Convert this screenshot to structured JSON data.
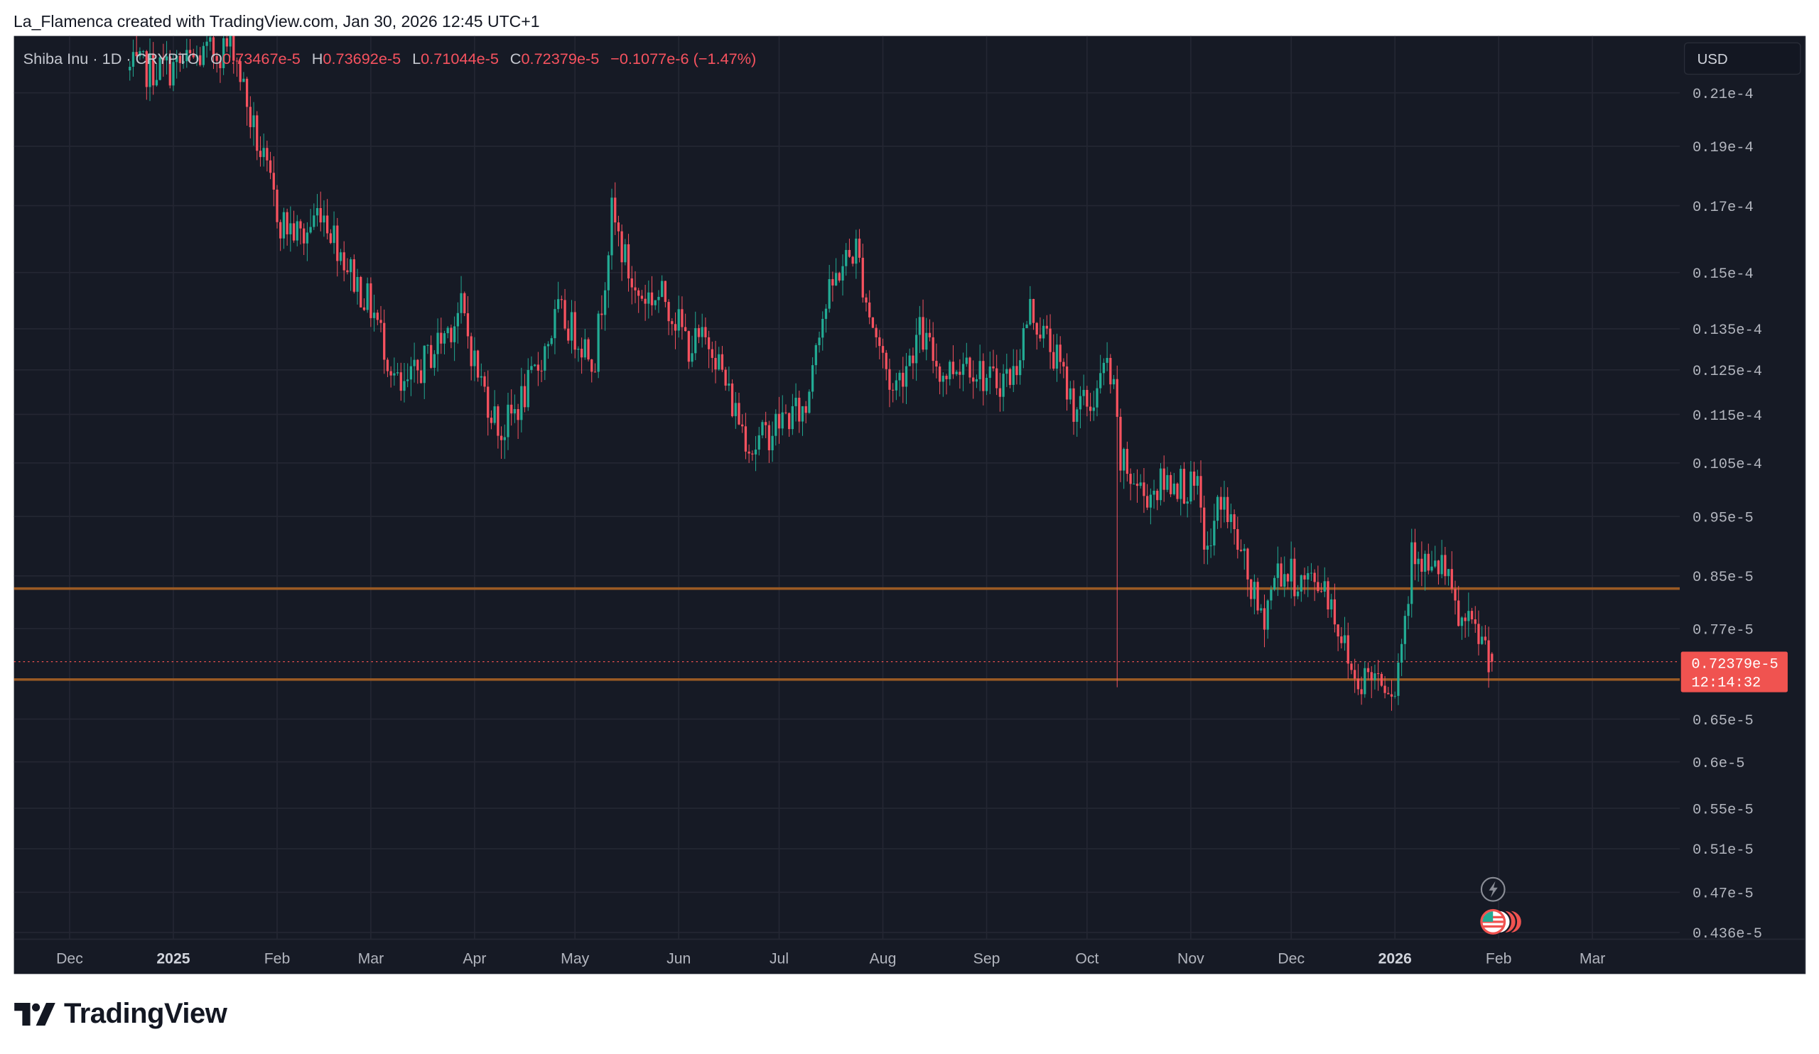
{
  "attribution": "La_Flamenca created with TradingView.com, Jan 30, 2026 12:45 UTC+1",
  "legend": {
    "symbol": "Shiba Inu · 1D · CRYPTO",
    "open_label": "O",
    "open": "0.73467e-5",
    "high_label": "H",
    "high": "0.73692e-5",
    "low_label": "L",
    "low": "0.71044e-5",
    "close_label": "C",
    "close": "0.72379e-5",
    "change": "−0.1077e-6 (−1.47%)"
  },
  "currency_button": "USD",
  "last_price": {
    "value": "0.72379e-5",
    "countdown": "12:14:32"
  },
  "logo_text": "TradingView",
  "colors": {
    "up": "#22ab94",
    "down": "#f7525f",
    "level": "#9a5a24",
    "background": "#161a25",
    "grid": "#242733",
    "axis_text": "#b2b5be"
  },
  "chart_data": {
    "type": "candlestick",
    "title": "Shiba Inu · 1D · CRYPTO",
    "unit": "e-5 USD",
    "yscale": "log",
    "ylim": [
      0.42,
      2.25
    ],
    "grid": true,
    "y_ticks": [
      {
        "value": 2.1,
        "label": "0.21e-4"
      },
      {
        "value": 1.9,
        "label": "0.19e-4"
      },
      {
        "value": 1.7,
        "label": "0.17e-4"
      },
      {
        "value": 1.5,
        "label": "0.15e-4"
      },
      {
        "value": 1.35,
        "label": "0.135e-4"
      },
      {
        "value": 1.25,
        "label": "0.125e-4"
      },
      {
        "value": 1.15,
        "label": "0.115e-4"
      },
      {
        "value": 1.05,
        "label": "0.105e-4"
      },
      {
        "value": 0.95,
        "label": "0.95e-5"
      },
      {
        "value": 0.85,
        "label": "0.85e-5"
      },
      {
        "value": 0.77,
        "label": "0.77e-5"
      },
      {
        "value": 0.65,
        "label": "0.65e-5"
      },
      {
        "value": 0.6,
        "label": "0.6e-5"
      },
      {
        "value": 0.55,
        "label": "0.55e-5"
      },
      {
        "value": 0.51,
        "label": "0.51e-5"
      },
      {
        "value": 0.47,
        "label": "0.47e-5"
      },
      {
        "value": 0.436,
        "label": "0.436e-5"
      }
    ],
    "x_ticks": [
      {
        "date": "2024-12-01",
        "label": "Dec",
        "bold": false
      },
      {
        "date": "2025-01-01",
        "label": "2025",
        "bold": true
      },
      {
        "date": "2025-02-01",
        "label": "Feb",
        "bold": false
      },
      {
        "date": "2025-03-01",
        "label": "Mar",
        "bold": false
      },
      {
        "date": "2025-04-01",
        "label": "Apr",
        "bold": false
      },
      {
        "date": "2025-05-01",
        "label": "May",
        "bold": false
      },
      {
        "date": "2025-06-01",
        "label": "Jun",
        "bold": false
      },
      {
        "date": "2025-07-01",
        "label": "Jul",
        "bold": false
      },
      {
        "date": "2025-08-01",
        "label": "Aug",
        "bold": false
      },
      {
        "date": "2025-09-01",
        "label": "Sep",
        "bold": false
      },
      {
        "date": "2025-10-01",
        "label": "Oct",
        "bold": false
      },
      {
        "date": "2025-11-01",
        "label": "Nov",
        "bold": false
      },
      {
        "date": "2025-12-01",
        "label": "Dec",
        "bold": false
      },
      {
        "date": "2026-01-01",
        "label": "2026",
        "bold": true
      },
      {
        "date": "2026-02-01",
        "label": "Feb",
        "bold": false
      },
      {
        "date": "2026-03-01",
        "label": "Mar",
        "bold": false
      }
    ],
    "close_path": [
      [
        "2024-12-19",
        2.19
      ],
      [
        "2025-01-01",
        2.2
      ],
      [
        "2025-01-19",
        2.3
      ],
      [
        "2025-01-24",
        2.0
      ],
      [
        "2025-02-02",
        1.65
      ],
      [
        "2025-02-09",
        1.6
      ],
      [
        "2025-02-14",
        1.7
      ],
      [
        "2025-02-23",
        1.5
      ],
      [
        "2025-03-02",
        1.39
      ],
      [
        "2025-03-10",
        1.19
      ],
      [
        "2025-03-19",
        1.29
      ],
      [
        "2025-03-28",
        1.4
      ],
      [
        "2025-04-02",
        1.24
      ],
      [
        "2025-04-09",
        1.11
      ],
      [
        "2025-04-18",
        1.22
      ],
      [
        "2025-04-26",
        1.39
      ],
      [
        "2025-05-07",
        1.28
      ],
      [
        "2025-05-12",
        1.67
      ],
      [
        "2025-05-19",
        1.44
      ],
      [
        "2025-05-28",
        1.43
      ],
      [
        "2025-06-04",
        1.31
      ],
      [
        "2025-06-11",
        1.32
      ],
      [
        "2025-06-16",
        1.19
      ],
      [
        "2025-06-23",
        1.08
      ],
      [
        "2025-07-02",
        1.14
      ],
      [
        "2025-07-09",
        1.16
      ],
      [
        "2025-07-12",
        1.34
      ],
      [
        "2025-07-19",
        1.51
      ],
      [
        "2025-07-24",
        1.57
      ],
      [
        "2025-07-28",
        1.39
      ],
      [
        "2025-08-04",
        1.2
      ],
      [
        "2025-08-12",
        1.34
      ],
      [
        "2025-08-19",
        1.24
      ],
      [
        "2025-08-26",
        1.28
      ],
      [
        "2025-09-02",
        1.22
      ],
      [
        "2025-09-09",
        1.24
      ],
      [
        "2025-09-14",
        1.4
      ],
      [
        "2025-09-21",
        1.29
      ],
      [
        "2025-09-27",
        1.17
      ],
      [
        "2025-10-02",
        1.17
      ],
      [
        "2025-10-07",
        1.26
      ],
      [
        "2025-10-09",
        1.19
      ],
      [
        "2025-10-11",
        1.05
      ],
      [
        "2025-10-18",
        0.99
      ],
      [
        "2025-10-27",
        1.02
      ],
      [
        "2025-11-03",
        0.99
      ],
      [
        "2025-11-06",
        0.88
      ],
      [
        "2025-11-10",
        0.99
      ],
      [
        "2025-11-15",
        0.9
      ],
      [
        "2025-11-22",
        0.78
      ],
      [
        "2025-11-27",
        0.86
      ],
      [
        "2025-12-04",
        0.84
      ],
      [
        "2025-12-11",
        0.84
      ],
      [
        "2025-12-20",
        0.7
      ],
      [
        "2025-12-27",
        0.71
      ],
      [
        "2026-01-01",
        0.69
      ],
      [
        "2026-01-05",
        0.82
      ],
      [
        "2026-01-06",
        0.91
      ],
      [
        "2026-01-12",
        0.85
      ],
      [
        "2026-01-15",
        0.87
      ],
      [
        "2026-01-20",
        0.78
      ],
      [
        "2026-01-26",
        0.76
      ],
      [
        "2026-01-29",
        0.7347
      ]
    ],
    "notable_wicks": [
      {
        "date": "2025-10-10",
        "low": 0.69
      }
    ],
    "last_candle": {
      "date": "2026-01-30",
      "open": 0.73467,
      "high": 0.73692,
      "low": 0.71044,
      "close": 0.72379
    },
    "horizontal_levels": [
      0.83,
      0.7
    ],
    "current_price_line": 0.72379
  }
}
